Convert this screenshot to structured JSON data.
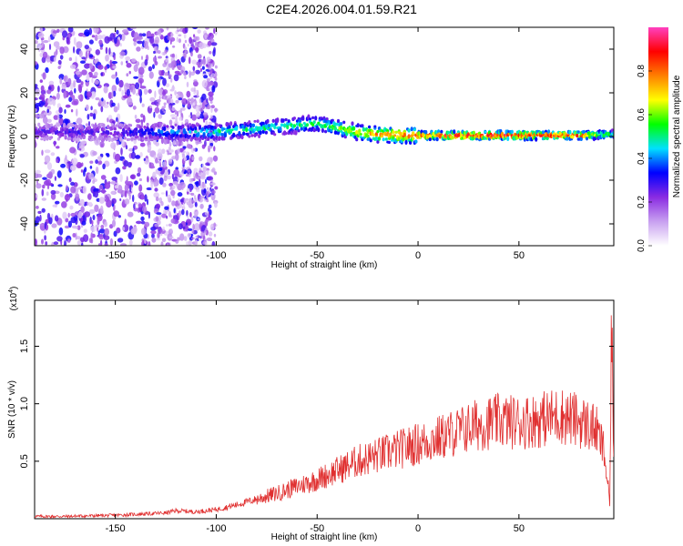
{
  "title": "C2E4.2026.004.01.59.R21",
  "chart_data": [
    {
      "type": "heatmap",
      "title": "C2E4.2026.004.01.59.R21",
      "xlabel": "Height of straight line (km)",
      "ylabel": "Frequency (Hz)",
      "xlim": [
        -190,
        97
      ],
      "ylim": [
        -50,
        50
      ],
      "x_ticks": [
        -150,
        -100,
        -50,
        0,
        50
      ],
      "y_ticks": [
        -40,
        -20,
        0,
        20,
        40
      ],
      "x_tick_labels": [
        "-150",
        "-100",
        "-50",
        "0",
        "50"
      ],
      "y_tick_labels": [
        "-40",
        "-20",
        "0",
        "20",
        "40"
      ],
      "colorbar": {
        "label": "Normalized spectral amplitude",
        "range": [
          0,
          1
        ],
        "ticks": [
          0.0,
          0.2,
          0.4,
          0.6,
          0.8
        ],
        "tick_labels": [
          "0.0",
          "0.2",
          "0.4",
          "0.6",
          "0.8"
        ],
        "colors": [
          "#ffffff",
          "#c8a0f0",
          "#8a2be2",
          "#0000ff",
          "#00e0ff",
          "#00ff00",
          "#ffff00",
          "#ff8000",
          "#ff0000",
          "#ff40c0"
        ]
      },
      "ridge": [
        {
          "x": -175,
          "y": 2,
          "amp": 0.3
        },
        {
          "x": -150,
          "y": 2,
          "amp": 0.3
        },
        {
          "x": -125,
          "y": 2,
          "amp": 0.45
        },
        {
          "x": -100,
          "y": 2,
          "amp": 0.55
        },
        {
          "x": -75,
          "y": 4,
          "amp": 0.55
        },
        {
          "x": -50,
          "y": 6,
          "amp": 0.6
        },
        {
          "x": -40,
          "y": 4,
          "amp": 0.65
        },
        {
          "x": -30,
          "y": 2,
          "amp": 0.75
        },
        {
          "x": -20,
          "y": 1,
          "amp": 0.85
        },
        {
          "x": -5,
          "y": 0.5,
          "amp": 0.9
        },
        {
          "x": 20,
          "y": 0.5,
          "amp": 1.0
        },
        {
          "x": 50,
          "y": 0.5,
          "amp": 1.0
        },
        {
          "x": 80,
          "y": 0.5,
          "amp": 0.95
        },
        {
          "x": 95,
          "y": 1,
          "amp": 0.6
        }
      ]
    },
    {
      "type": "line",
      "xlabel": "Height of straight line (km)",
      "ylabel": "SNR (10 * v/v)",
      "y_multiplier_label": "(x10",
      "y_multiplier_exp": "4",
      "y_multiplier_close": ")",
      "xlim": [
        -190,
        97
      ],
      "ylim": [
        0,
        1.9
      ],
      "x_ticks": [
        -150,
        -100,
        -50,
        0,
        50
      ],
      "y_ticks": [
        0.5,
        1.0,
        1.5
      ],
      "x_tick_labels": [
        "-150",
        "-100",
        "-50",
        "0",
        "50"
      ],
      "y_tick_labels": [
        "0.5",
        "1.0",
        "1.5"
      ],
      "series": [
        {
          "color": "#e03030",
          "x": [
            -190,
            -175,
            -150,
            -125,
            -120,
            -110,
            -100,
            -90,
            -80,
            -70,
            -60,
            -50,
            -40,
            -30,
            -20,
            -10,
            0,
            10,
            20,
            30,
            40,
            50,
            60,
            70,
            80,
            88,
            92,
            94,
            95,
            96,
            97
          ],
          "y": [
            0.02,
            0.02,
            0.03,
            0.05,
            0.07,
            0.06,
            0.08,
            0.12,
            0.17,
            0.22,
            0.28,
            0.34,
            0.42,
            0.5,
            0.55,
            0.6,
            0.65,
            0.7,
            0.76,
            0.82,
            0.85,
            0.84,
            0.86,
            0.9,
            0.85,
            0.78,
            0.6,
            0.3,
            0.12,
            1.8,
            0.5
          ]
        }
      ]
    }
  ]
}
